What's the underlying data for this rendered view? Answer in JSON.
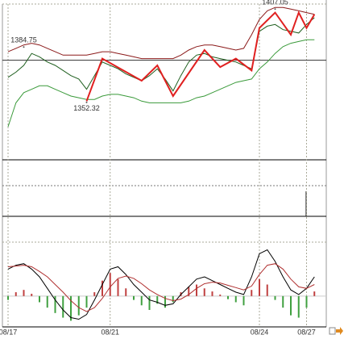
{
  "chart_data": [
    {
      "type": "line",
      "categories": [
        "08/17",
        null,
        null,
        null,
        null,
        null,
        null,
        null,
        null,
        null,
        null,
        null,
        null,
        "08/21",
        null,
        null,
        null,
        null,
        null,
        null,
        null,
        null,
        null,
        null,
        null,
        null,
        null,
        null,
        null,
        null,
        null,
        null,
        "08/24",
        null,
        null,
        null,
        null,
        null,
        "08/27",
        null
      ],
      "ylim": [
        1320,
        1410
      ],
      "reference_line": 1377,
      "series": [
        {
          "type": "line",
          "color": "#8b1a1a",
          "values": [
            1382,
            1384,
            1386,
            1387,
            1386,
            1384,
            1382,
            1380,
            1380,
            1380,
            1380,
            1381,
            1382,
            1382,
            1381,
            1380,
            1379,
            1378,
            1378,
            1378,
            1378,
            1378,
            1380,
            1383,
            1385,
            1386,
            1386,
            1385,
            1384,
            1383,
            1384,
            1392,
            1401,
            1406,
            1408,
            1408,
            1407,
            1406,
            1405,
            1404
          ]
        },
        {
          "type": "line",
          "color": "#3a9a3a",
          "values": [
            1338,
            1352,
            1358,
            1360,
            1362,
            1362,
            1360,
            1358,
            1356,
            1355,
            1354,
            1354,
            1356,
            1357,
            1357,
            1356,
            1355,
            1353,
            1352,
            1352,
            1352,
            1352,
            1352,
            1353,
            1355,
            1356,
            1358,
            1360,
            1362,
            1364,
            1365,
            1366,
            1372,
            1376,
            1381,
            1385,
            1387,
            1388,
            1389,
            1389
          ]
        },
        {
          "type": "line",
          "color": "#1f5f1f",
          "values": [
            1367,
            1370,
            1374,
            1381,
            1379,
            1376,
            1374,
            1371,
            1368,
            1366,
            1360,
            1368,
            1376,
            1374,
            1372,
            1369,
            1367,
            1365,
            1368,
            1372,
            1366,
            1359,
            1368,
            1376,
            1380,
            1381,
            1379,
            1378,
            1377,
            1376,
            1374,
            1372,
            1394,
            1397,
            1398,
            1395,
            1394,
            1393,
            1398,
            1402
          ]
        },
        {
          "type": "zigzag",
          "color": "#e02020",
          "x": [
            10,
            12,
            17,
            19,
            21,
            25,
            27,
            29,
            31,
            32,
            34,
            36,
            37,
            38,
            39
          ],
          "values": [
            1353,
            1378,
            1365,
            1374,
            1356,
            1383,
            1373,
            1378,
            1371,
            1396,
            1405,
            1392,
            1405,
            1396,
            1404
          ]
        }
      ],
      "annotations": [
        {
          "text": "1384.75",
          "x": 2,
          "value": 1384.75
        },
        {
          "text": "1352.32",
          "x": 10,
          "value": 1352.32
        },
        {
          "text": "1407.05",
          "x": 34,
          "value": 1407.05
        }
      ]
    },
    {
      "type": "combo",
      "ylim": [
        -4,
        7
      ],
      "series": [
        {
          "type": "bar",
          "colors": {
            "up": "#c04040",
            "down": "#40a040"
          },
          "values": [
            -0.5,
            0.5,
            0.8,
            0.3,
            -0.8,
            -1.5,
            -2.2,
            -2.8,
            -3.2,
            -2.5,
            -1.5,
            0.5,
            2.0,
            3.0,
            2.2,
            1.0,
            -0.5,
            -1.2,
            -1.8,
            -1.0,
            -1.5,
            -0.8,
            0.5,
            1.2,
            1.5,
            1.0,
            0.6,
            0.2,
            -0.4,
            -0.8,
            -1.2,
            0.8,
            2.2,
            1.5,
            -0.5,
            -1.5,
            -2.5,
            -2.8,
            -1.5,
            0.6
          ]
        },
        {
          "type": "line",
          "color": "#000000",
          "values": [
            3.5,
            4.0,
            4.2,
            3.5,
            2.5,
            1.0,
            -0.5,
            -1.8,
            -2.8,
            -3.0,
            -2.4,
            -0.5,
            1.5,
            3.5,
            3.8,
            2.8,
            1.5,
            0.5,
            -0.5,
            -0.8,
            -1.2,
            -1.0,
            0.2,
            1.2,
            2.2,
            2.5,
            2.0,
            1.5,
            1.0,
            0.5,
            0.2,
            2.5,
            5.5,
            6.0,
            4.5,
            2.5,
            0.8,
            0.2,
            1.0,
            2.5
          ]
        },
        {
          "type": "line",
          "color": "#b03030",
          "values": [
            3.8,
            3.9,
            4.0,
            3.8,
            3.2,
            2.5,
            1.5,
            0.5,
            -0.6,
            -1.5,
            -2.0,
            -1.5,
            -0.3,
            1.2,
            2.3,
            2.6,
            2.3,
            1.6,
            0.8,
            0.2,
            -0.3,
            -0.6,
            -0.4,
            0.2,
            1.0,
            1.6,
            1.8,
            1.7,
            1.4,
            1.1,
            0.8,
            1.3,
            2.8,
            4.0,
            4.2,
            3.5,
            2.2,
            1.2,
            1.0,
            1.5
          ]
        }
      ]
    }
  ]
}
